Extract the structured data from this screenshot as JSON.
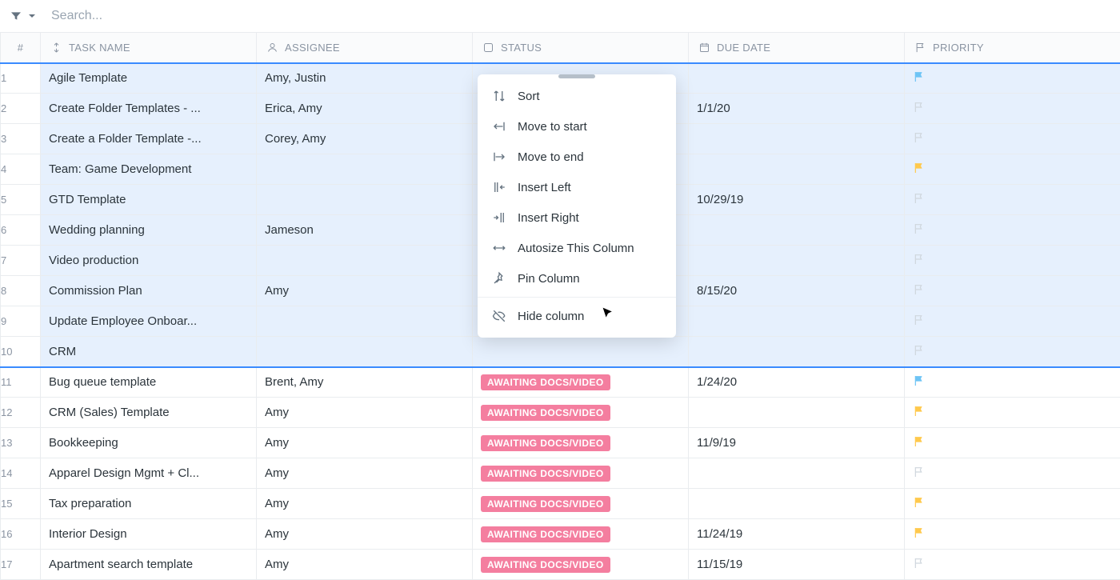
{
  "toolbar": {
    "search_placeholder": "Search..."
  },
  "columns": {
    "num_header": "#",
    "task_header": "TASK NAME",
    "assignee_header": "ASSIGNEE",
    "status_header": "STATUS",
    "due_header": "DUE DATE",
    "priority_header": "PRIORITY"
  },
  "status_label": "AWAITING DOCS/VIDEO",
  "flag_colors": {
    "blue": "#6ec4f5",
    "yellow": "#ffc94d",
    "grey": "#cfd6dd"
  },
  "rows": [
    {
      "n": "1",
      "task": "Agile Template",
      "assignee": "Amy, Justin",
      "status": "",
      "due": "",
      "flag": "blue",
      "sel": true
    },
    {
      "n": "2",
      "task": "Create Folder Templates - ...",
      "assignee": "Erica, Amy",
      "status": "",
      "due": "1/1/20",
      "flag": "grey",
      "sel": true
    },
    {
      "n": "3",
      "task": "Create a Folder Template -...",
      "assignee": "Corey, Amy",
      "status": "",
      "due": "",
      "flag": "grey",
      "sel": true
    },
    {
      "n": "4",
      "task": "Team: Game Development",
      "assignee": "",
      "status": "",
      "due": "",
      "flag": "yellow",
      "sel": true
    },
    {
      "n": "5",
      "task": "GTD Template",
      "assignee": "",
      "status": "",
      "due": "10/29/19",
      "flag": "grey",
      "sel": true
    },
    {
      "n": "6",
      "task": "Wedding planning",
      "assignee": "Jameson",
      "status": "",
      "due": "",
      "flag": "grey",
      "sel": true
    },
    {
      "n": "7",
      "task": "Video production",
      "assignee": "",
      "status": "",
      "due": "",
      "flag": "grey",
      "sel": true
    },
    {
      "n": "8",
      "task": "Commission Plan",
      "assignee": "Amy",
      "status": "",
      "due": "8/15/20",
      "flag": "grey",
      "sel": true
    },
    {
      "n": "9",
      "task": "Update Employee Onboar...",
      "assignee": "",
      "status": "",
      "due": "",
      "flag": "grey",
      "sel": true
    },
    {
      "n": "10",
      "task": "CRM",
      "assignee": "",
      "status": "",
      "due": "",
      "flag": "grey",
      "sel": true
    },
    {
      "n": "11",
      "task": "Bug queue template",
      "assignee": "Brent, Amy",
      "status": "badge",
      "due": "1/24/20",
      "flag": "blue",
      "sel": false
    },
    {
      "n": "12",
      "task": "CRM (Sales) Template",
      "assignee": "Amy",
      "status": "badge",
      "due": "",
      "flag": "yellow",
      "sel": false
    },
    {
      "n": "13",
      "task": "Bookkeeping",
      "assignee": "Amy",
      "status": "badge",
      "due": "11/9/19",
      "flag": "yellow",
      "sel": false
    },
    {
      "n": "14",
      "task": "Apparel Design Mgmt + Cl...",
      "assignee": "Amy",
      "status": "badge",
      "due": "",
      "flag": "grey",
      "sel": false
    },
    {
      "n": "15",
      "task": "Tax preparation",
      "assignee": "Amy",
      "status": "badge",
      "due": "",
      "flag": "yellow",
      "sel": false
    },
    {
      "n": "16",
      "task": "Interior Design",
      "assignee": "Amy",
      "status": "badge",
      "due": "11/24/19",
      "flag": "yellow",
      "sel": false
    },
    {
      "n": "17",
      "task": "Apartment search template",
      "assignee": "Amy",
      "status": "badge",
      "due": "11/15/19",
      "flag": "grey",
      "sel": false
    }
  ],
  "context_menu": {
    "items": [
      {
        "label": "Sort",
        "icon": "sort"
      },
      {
        "label": "Move to start",
        "icon": "move-start"
      },
      {
        "label": "Move to end",
        "icon": "move-end"
      },
      {
        "label": "Insert Left",
        "icon": "insert-left"
      },
      {
        "label": "Insert Right",
        "icon": "insert-right"
      },
      {
        "label": "Autosize This Column",
        "icon": "autosize"
      },
      {
        "label": "Pin Column",
        "icon": "pin"
      }
    ],
    "hide_label": "Hide column"
  }
}
